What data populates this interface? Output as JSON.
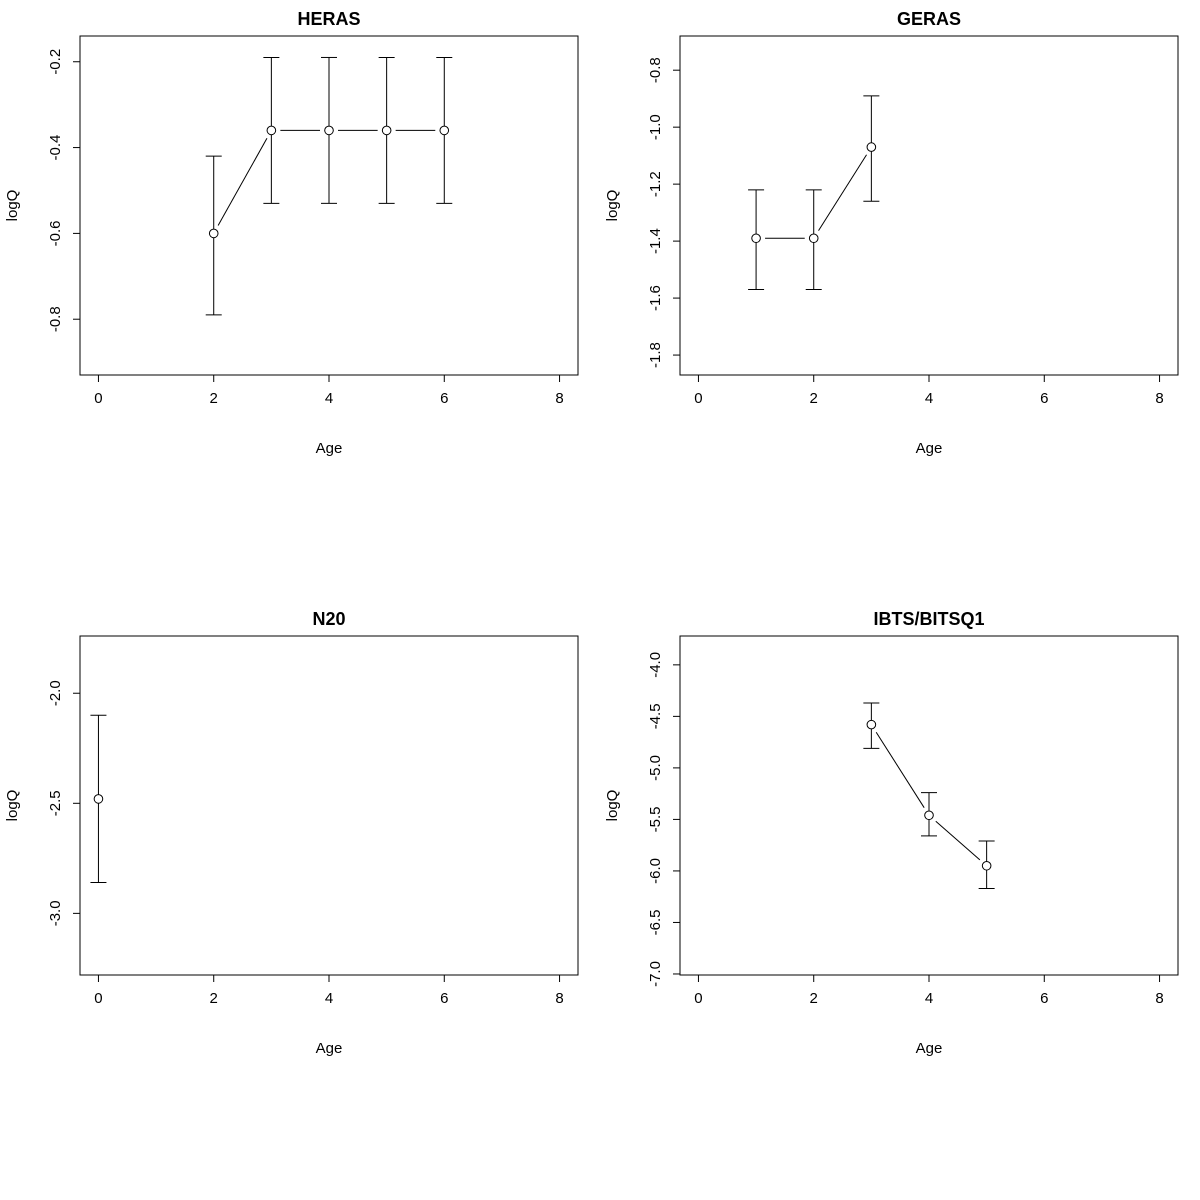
{
  "style": {
    "foreground": "#000000",
    "background": "#ffffff"
  },
  "chart_data": [
    {
      "type": "line",
      "title": "HERAS",
      "xlabel": "Age",
      "ylabel": "logQ",
      "xlim": [
        -0.32,
        8.32
      ],
      "ylim": [
        -0.93,
        -0.14
      ],
      "xticks": [
        0,
        2,
        4,
        6,
        8
      ],
      "yticks": [
        -0.8,
        -0.6,
        -0.4,
        -0.2
      ],
      "grid": false,
      "marker": "open-circle",
      "error_bars": true,
      "points": [
        {
          "x": 2,
          "y": -0.6,
          "lo": -0.79,
          "hi": -0.42
        },
        {
          "x": 3,
          "y": -0.36,
          "lo": -0.53,
          "hi": -0.19
        },
        {
          "x": 4,
          "y": -0.36,
          "lo": -0.53,
          "hi": -0.19
        },
        {
          "x": 5,
          "y": -0.36,
          "lo": -0.53,
          "hi": -0.19
        },
        {
          "x": 6,
          "y": -0.36,
          "lo": -0.53,
          "hi": -0.19
        }
      ]
    },
    {
      "type": "line",
      "title": "GERAS",
      "xlabel": "Age",
      "ylabel": "logQ",
      "xlim": [
        -0.32,
        8.32
      ],
      "ylim": [
        -1.87,
        -0.68
      ],
      "xticks": [
        0,
        2,
        4,
        6,
        8
      ],
      "yticks": [
        -1.8,
        -1.6,
        -1.4,
        -1.2,
        -1.0,
        -0.8
      ],
      "grid": false,
      "marker": "open-circle",
      "error_bars": true,
      "points": [
        {
          "x": 1,
          "y": -1.39,
          "lo": -1.57,
          "hi": -1.22
        },
        {
          "x": 2,
          "y": -1.39,
          "lo": -1.57,
          "hi": -1.22
        },
        {
          "x": 3,
          "y": -1.07,
          "lo": -1.26,
          "hi": -0.89
        }
      ]
    },
    {
      "type": "line",
      "title": "N20",
      "xlabel": "Age",
      "ylabel": "logQ",
      "xlim": [
        -0.32,
        8.32
      ],
      "ylim": [
        -3.28,
        -1.74
      ],
      "xticks": [
        0,
        2,
        4,
        6,
        8
      ],
      "yticks": [
        -3.0,
        -2.5,
        -2.0
      ],
      "grid": false,
      "marker": "open-circle",
      "error_bars": true,
      "points": [
        {
          "x": 0,
          "y": -2.48,
          "lo": -2.86,
          "hi": -2.1
        }
      ]
    },
    {
      "type": "line",
      "title": "IBTS/BITSQ1",
      "xlabel": "Age",
      "ylabel": "logQ",
      "xlim": [
        -0.32,
        8.32
      ],
      "ylim": [
        -7.01,
        -3.72
      ],
      "xticks": [
        0,
        2,
        4,
        6,
        8
      ],
      "yticks": [
        -7.0,
        -6.5,
        -6.0,
        -5.5,
        -5.0,
        -4.5,
        -4.0
      ],
      "grid": false,
      "marker": "open-circle",
      "error_bars": true,
      "points": [
        {
          "x": 3,
          "y": -4.58,
          "lo": -4.81,
          "hi": -4.37
        },
        {
          "x": 4,
          "y": -5.46,
          "lo": -5.66,
          "hi": -5.24
        },
        {
          "x": 5,
          "y": -5.95,
          "lo": -6.17,
          "hi": -5.71
        }
      ]
    }
  ]
}
